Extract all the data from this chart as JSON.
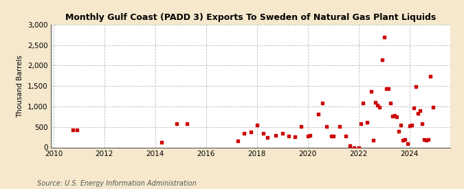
{
  "title": "Monthly Gulf Coast (PADD 3) Exports To Sweden of Natural Gas Plant Liquids",
  "ylabel": "Thousand Barrels",
  "source": "Source: U.S. Energy Information Administration",
  "fig_background_color": "#f5e8cc",
  "plot_background_color": "#ffffff",
  "marker_color": "#cc0000",
  "marker": "s",
  "marker_size": 3.5,
  "xlim": [
    2009.9,
    2025.6
  ],
  "ylim": [
    0,
    3000
  ],
  "yticks": [
    0,
    500,
    1000,
    1500,
    2000,
    2500,
    3000
  ],
  "xticks": [
    2010,
    2012,
    2014,
    2016,
    2018,
    2020,
    2022,
    2024
  ],
  "data": [
    [
      2010.75,
      420
    ],
    [
      2010.92,
      420
    ],
    [
      2014.25,
      120
    ],
    [
      2014.83,
      580
    ],
    [
      2015.25,
      580
    ],
    [
      2017.25,
      160
    ],
    [
      2017.5,
      350
    ],
    [
      2017.75,
      370
    ],
    [
      2018.0,
      550
    ],
    [
      2018.25,
      340
    ],
    [
      2018.42,
      240
    ],
    [
      2018.75,
      300
    ],
    [
      2019.0,
      340
    ],
    [
      2019.25,
      270
    ],
    [
      2019.5,
      260
    ],
    [
      2019.75,
      510
    ],
    [
      2020.0,
      270
    ],
    [
      2020.08,
      290
    ],
    [
      2020.42,
      810
    ],
    [
      2020.58,
      1080
    ],
    [
      2020.75,
      510
    ],
    [
      2020.92,
      270
    ],
    [
      2021.0,
      270
    ],
    [
      2021.25,
      510
    ],
    [
      2021.5,
      270
    ],
    [
      2021.67,
      50
    ],
    [
      2021.83,
      0
    ],
    [
      2022.0,
      0
    ],
    [
      2022.08,
      580
    ],
    [
      2022.17,
      1080
    ],
    [
      2022.33,
      610
    ],
    [
      2022.5,
      1360
    ],
    [
      2022.58,
      170
    ],
    [
      2022.67,
      1100
    ],
    [
      2022.75,
      1030
    ],
    [
      2022.83,
      980
    ],
    [
      2022.92,
      2140
    ],
    [
      2023.0,
      2700
    ],
    [
      2023.08,
      1440
    ],
    [
      2023.17,
      1440
    ],
    [
      2023.25,
      1090
    ],
    [
      2023.33,
      760
    ],
    [
      2023.42,
      780
    ],
    [
      2023.5,
      750
    ],
    [
      2023.58,
      390
    ],
    [
      2023.67,
      550
    ],
    [
      2023.75,
      170
    ],
    [
      2023.83,
      200
    ],
    [
      2023.92,
      100
    ],
    [
      2024.0,
      530
    ],
    [
      2024.08,
      540
    ],
    [
      2024.17,
      960
    ],
    [
      2024.25,
      1490
    ],
    [
      2024.33,
      830
    ],
    [
      2024.42,
      890
    ],
    [
      2024.5,
      580
    ],
    [
      2024.58,
      200
    ],
    [
      2024.67,
      170
    ],
    [
      2024.75,
      200
    ],
    [
      2024.83,
      1730
    ],
    [
      2024.92,
      990
    ]
  ]
}
